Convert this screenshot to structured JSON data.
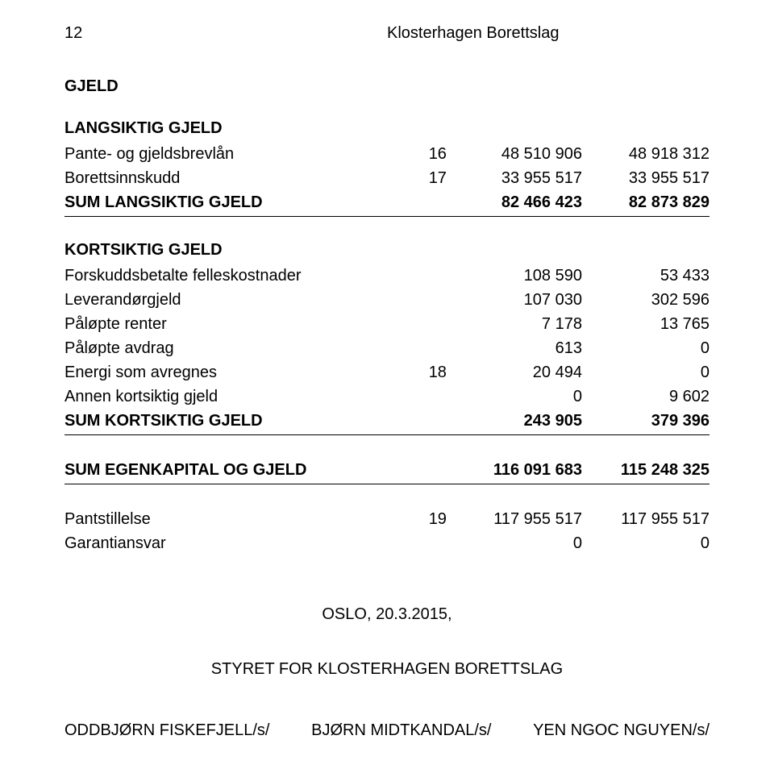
{
  "header": {
    "page_number": "12",
    "org_name": "Klosterhagen Borettslag"
  },
  "sections": {
    "gjeld_title": "GJELD",
    "langsiktig": {
      "title": "LANGSIKTIG GJELD",
      "rows": [
        {
          "label": "Pante- og gjeldsbrevlån",
          "note": "16",
          "v1": "48 510 906",
          "v2": "48 918 312"
        },
        {
          "label": "Borettsinnskudd",
          "note": "17",
          "v1": "33 955 517",
          "v2": "33 955 517"
        }
      ],
      "sum": {
        "label": "SUM LANGSIKTIG GJELD",
        "note": "",
        "v1": "82 466 423",
        "v2": "82 873 829"
      }
    },
    "kortsiktig": {
      "title": "KORTSIKTIG GJELD",
      "rows": [
        {
          "label": "Forskuddsbetalte felleskostnader",
          "note": "",
          "v1": "108 590",
          "v2": "53 433"
        },
        {
          "label": "Leverandørgjeld",
          "note": "",
          "v1": "107 030",
          "v2": "302 596"
        },
        {
          "label": "Påløpte renter",
          "note": "",
          "v1": "7 178",
          "v2": "13 765"
        },
        {
          "label": "Påløpte avdrag",
          "note": "",
          "v1": "613",
          "v2": "0"
        },
        {
          "label": "Energi som avregnes",
          "note": "18",
          "v1": "20 494",
          "v2": "0"
        },
        {
          "label": "Annen kortsiktig gjeld",
          "note": "",
          "v1": "0",
          "v2": "9 602"
        }
      ],
      "sum": {
        "label": "SUM KORTSIKTIG GJELD",
        "note": "",
        "v1": "243 905",
        "v2": "379 396"
      }
    },
    "egenkapital_sum": {
      "label": "SUM EGENKAPITAL OG GJELD",
      "note": "",
      "v1": "116 091 683",
      "v2": "115 248 325"
    },
    "footer_rows": [
      {
        "label": "Pantstillelse",
        "note": "19",
        "v1": "117 955 517",
        "v2": "117 955 517"
      },
      {
        "label": "Garantiansvar",
        "note": "",
        "v1": "0",
        "v2": "0"
      }
    ],
    "date_place": "OSLO, 20.3.2015,",
    "board_line": "STYRET FOR KLOSTERHAGEN BORETTSLAG",
    "signatures": {
      "s1": "ODDBJØRN FISKEFJELL/s/",
      "s2": "BJØRN MIDTKANDAL/s/",
      "s3": "YEN NGOC NGUYEN/s/"
    }
  },
  "colors": {
    "text": "#000000",
    "background": "#ffffff",
    "rule": "#000000"
  },
  "typography": {
    "base_fontsize_pt": 15,
    "bold_weight": 700,
    "font_family": "Arial"
  }
}
